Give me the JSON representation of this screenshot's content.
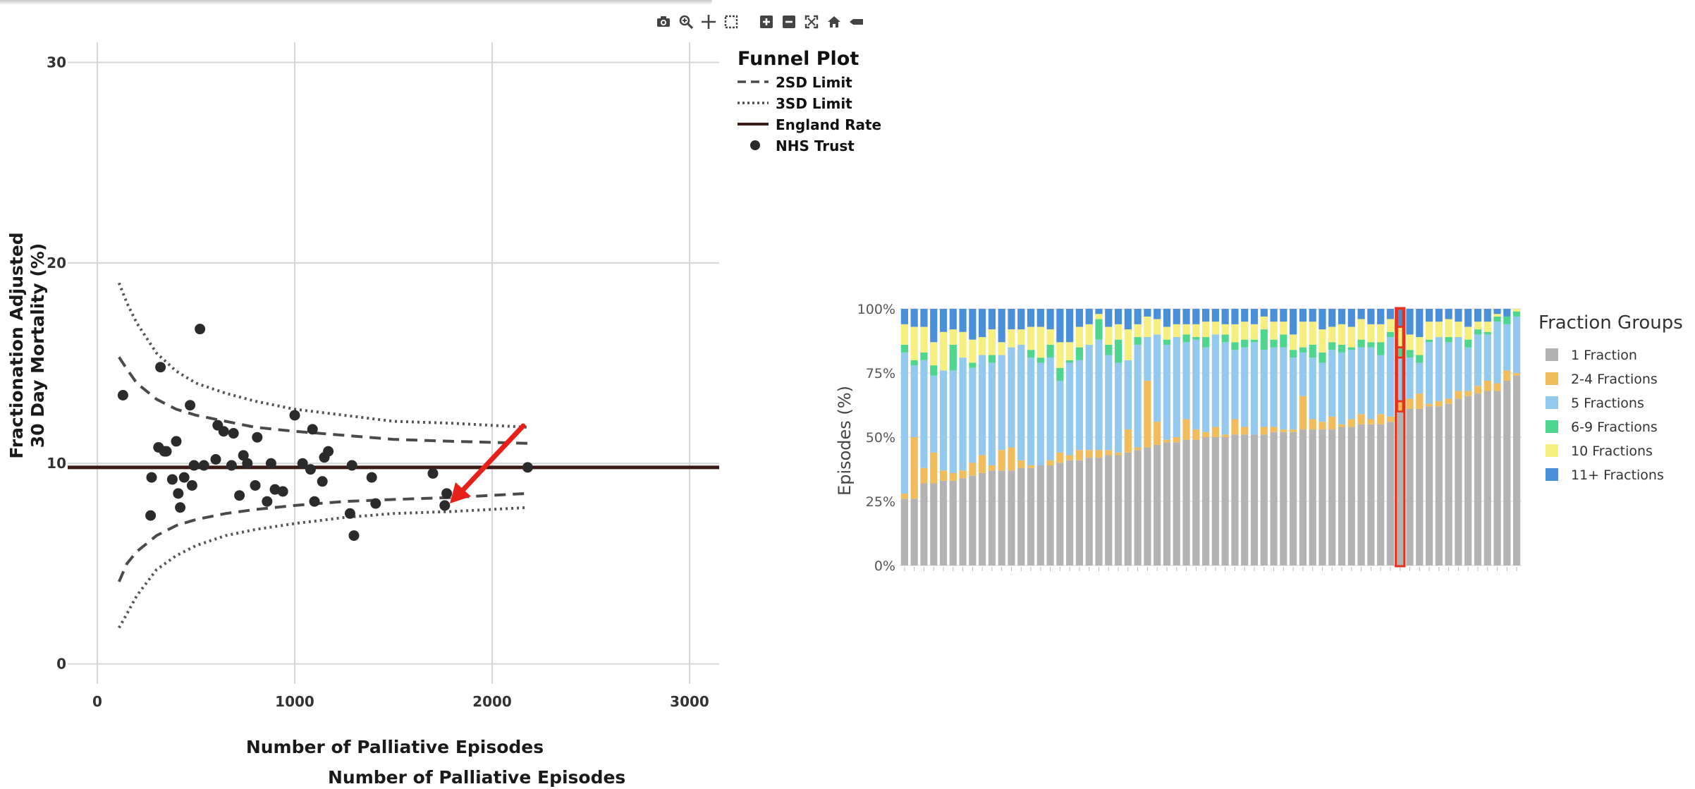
{
  "toolbar": {
    "icons": [
      "camera-icon",
      "zoom-icon",
      "pan-icon",
      "box-select-icon",
      "zoom-in-icon",
      "zoom-out-icon",
      "autoscale-icon",
      "reset-axes-icon",
      "toggle-spike-icon"
    ]
  },
  "funnel": {
    "xlabel": "Number of Palliative Episodes",
    "ylabel_line1": "Fractionation Adjusted",
    "ylabel_line2": "30 Day Mortality (%)",
    "xlabel_repeated": "Number of Palliative Episodes",
    "legend_title": "Funnel Plot",
    "legend": [
      "2SD Limit",
      "3SD Limit",
      "England Rate",
      "NHS Trust"
    ]
  },
  "chart_data": [
    {
      "type": "scatter",
      "title": "",
      "xlabel": "Number of Palliative Episodes",
      "ylabel": "Fractionation Adjusted 30 Day Mortality (%)",
      "xlim": [
        -150,
        3150
      ],
      "ylim": [
        -1,
        31
      ],
      "xticks": [
        0,
        1000,
        2000,
        3000
      ],
      "yticks": [
        0,
        10,
        20,
        30
      ],
      "grid": true,
      "legend_position": "right",
      "england_rate": 9.8,
      "limits": {
        "x": [
          110,
          150,
          200,
          300,
          400,
          500,
          650,
          800,
          1000,
          1250,
          1500,
          1800,
          2180
        ],
        "upper_3sd": [
          19.0,
          18.0,
          17.0,
          15.5,
          14.6,
          14.0,
          13.5,
          13.1,
          12.7,
          12.4,
          12.1,
          12.0,
          11.8
        ],
        "upper_2sd": [
          15.3,
          14.7,
          14.0,
          13.2,
          12.7,
          12.4,
          12.1,
          11.8,
          11.6,
          11.4,
          11.2,
          11.1,
          11.0
        ],
        "lower_2sd": [
          4.1,
          5.0,
          5.6,
          6.4,
          6.9,
          7.2,
          7.5,
          7.7,
          7.9,
          8.1,
          8.2,
          8.3,
          8.5
        ],
        "lower_3sd": [
          1.8,
          2.5,
          3.4,
          4.7,
          5.4,
          5.9,
          6.4,
          6.7,
          7.0,
          7.3,
          7.5,
          7.6,
          7.8
        ]
      },
      "series": [
        {
          "name": "NHS Trust",
          "x": [
            130,
            270,
            275,
            310,
            320,
            340,
            350,
            380,
            400,
            410,
            420,
            440,
            470,
            480,
            490,
            520,
            540,
            600,
            610,
            640,
            680,
            690,
            720,
            740,
            760,
            800,
            810,
            860,
            880,
            900,
            940,
            1000,
            1040,
            1080,
            1090,
            1100,
            1140,
            1150,
            1170,
            1280,
            1290,
            1300,
            1390,
            1410,
            1700,
            1760,
            1770,
            2180
          ],
          "y": [
            13.4,
            7.4,
            9.3,
            10.8,
            14.8,
            10.6,
            10.6,
            9.2,
            11.1,
            8.5,
            7.8,
            9.3,
            12.9,
            8.9,
            9.9,
            16.7,
            9.9,
            10.2,
            11.9,
            11.6,
            9.9,
            11.5,
            8.4,
            10.4,
            10.0,
            8.9,
            11.3,
            8.1,
            10.0,
            8.7,
            8.6,
            12.4,
            10.0,
            9.7,
            11.7,
            8.1,
            9.1,
            10.3,
            10.6,
            7.5,
            9.9,
            6.4,
            9.3,
            8.0,
            9.5,
            7.9,
            8.5,
            9.8
          ]
        }
      ],
      "annotation": "red-arrow"
    },
    {
      "type": "bar",
      "stacked": true,
      "ylabel": "Episodes (%)",
      "yticks": [
        "0%",
        "25%",
        "50%",
        "75%",
        "100%"
      ],
      "ylim": [
        0,
        100
      ],
      "legend_title": "Fraction Groups",
      "legend_position": "right",
      "highlight_index": 51,
      "series": [
        {
          "name": "1 Fraction",
          "color": "#b3b3b3",
          "values": [
            26,
            26,
            32,
            32,
            33,
            33,
            34,
            35,
            36,
            37,
            37,
            37,
            38,
            38,
            39,
            39,
            40,
            41,
            41,
            42,
            42,
            43,
            43,
            44,
            45,
            46,
            47,
            48,
            48,
            49,
            49,
            50,
            50,
            50,
            51,
            51,
            51,
            51,
            52,
            52,
            52,
            53,
            53,
            53,
            53,
            54,
            54,
            55,
            55,
            55,
            56,
            60,
            61,
            61,
            62,
            62,
            63,
            65,
            66,
            67,
            68,
            68,
            72,
            74
          ]
        },
        {
          "name": "2-4 Fractions",
          "color": "#f1bd5c",
          "values": [
            2,
            24,
            6,
            12,
            4,
            3,
            3,
            5,
            7,
            2,
            8,
            9,
            3,
            1,
            0,
            2,
            4,
            2,
            4,
            3,
            3,
            2,
            1,
            9,
            1,
            26,
            9,
            1,
            2,
            8,
            4,
            2,
            4,
            1,
            6,
            3,
            0,
            3,
            2,
            1,
            1,
            13,
            4,
            3,
            5,
            1,
            3,
            4,
            2,
            4,
            2,
            4,
            4,
            6,
            1,
            2,
            2,
            3,
            2,
            3,
            4,
            3,
            4,
            1
          ]
        },
        {
          "name": "5 Fractions",
          "color": "#93c8ef",
          "values": [
            55,
            28,
            42,
            30,
            39,
            40,
            44,
            37,
            39,
            40,
            37,
            39,
            45,
            42,
            40,
            40,
            28,
            36,
            35,
            41,
            43,
            37,
            35,
            27,
            40,
            17,
            34,
            37,
            39,
            30,
            35,
            33,
            36,
            36,
            27,
            31,
            36,
            30,
            31,
            32,
            28,
            17,
            24,
            23,
            26,
            28,
            27,
            26,
            28,
            23,
            31,
            17,
            16,
            12,
            24,
            25,
            22,
            21,
            17,
            20,
            18,
            24,
            18,
            22
          ]
        },
        {
          "name": "6-9 Fractions",
          "color": "#4fd68e",
          "values": [
            3,
            2,
            3,
            4,
            0,
            10,
            0,
            2,
            0,
            3,
            0,
            0,
            0,
            3,
            2,
            5,
            5,
            1,
            5,
            0,
            8,
            4,
            9,
            0,
            3,
            0,
            0,
            2,
            0,
            3,
            1,
            4,
            0,
            3,
            3,
            3,
            1,
            8,
            3,
            5,
            3,
            2,
            5,
            4,
            3,
            3,
            1,
            3,
            2,
            5,
            2,
            4,
            3,
            3,
            1,
            0,
            2,
            0,
            3,
            2,
            1,
            2,
            3,
            2
          ]
        },
        {
          "name": "10 Fractions",
          "color": "#f6ee7e",
          "values": [
            8,
            13,
            10,
            9,
            15,
            6,
            10,
            9,
            7,
            10,
            5,
            7,
            6,
            9,
            12,
            6,
            10,
            7,
            8,
            8,
            2,
            7,
            6,
            12,
            5,
            8,
            6,
            5,
            5,
            4,
            5,
            6,
            5,
            4,
            7,
            7,
            6,
            5,
            7,
            5,
            6,
            10,
            9,
            9,
            6,
            8,
            8,
            8,
            7,
            7,
            5,
            8,
            6,
            7,
            7,
            6,
            7,
            6,
            5,
            3,
            4,
            1,
            0,
            1
          ]
        },
        {
          "name": "11+ Fractions",
          "color": "#4a90d9",
          "values": [
            6,
            7,
            7,
            13,
            9,
            8,
            9,
            12,
            11,
            8,
            13,
            8,
            8,
            7,
            7,
            8,
            13,
            13,
            7,
            6,
            2,
            7,
            6,
            8,
            6,
            3,
            4,
            7,
            6,
            6,
            6,
            5,
            5,
            6,
            6,
            5,
            6,
            3,
            5,
            5,
            10,
            5,
            5,
            8,
            7,
            6,
            7,
            4,
            6,
            6,
            4,
            7,
            10,
            11,
            5,
            5,
            4,
            5,
            7,
            5,
            5,
            2,
            3,
            0
          ]
        }
      ]
    }
  ]
}
